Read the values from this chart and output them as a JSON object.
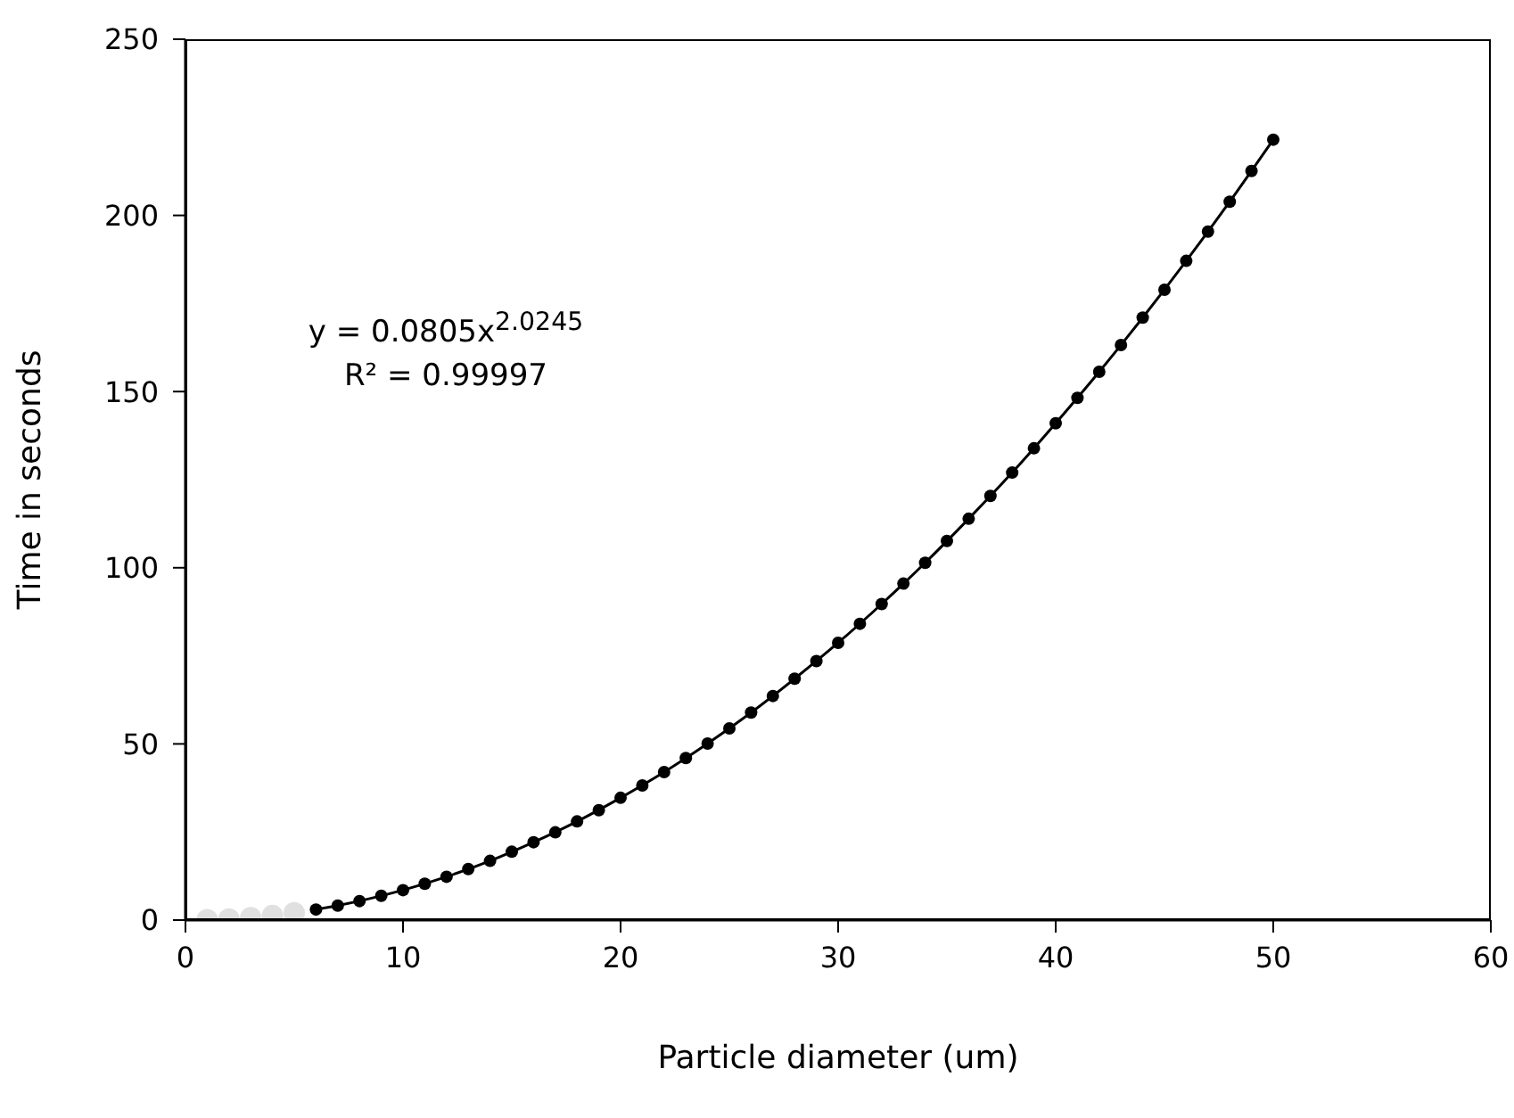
{
  "chart_data": {
    "type": "scatter",
    "xlabel": "Particle diameter (um)",
    "ylabel": "Time in seconds",
    "xlim": [
      0,
      60
    ],
    "xticks": [
      0,
      10,
      20,
      30,
      40,
      50,
      60
    ],
    "ylim": [
      0,
      250
    ],
    "yticks": [
      0,
      50,
      100,
      150,
      200,
      250
    ],
    "grid": false,
    "legend": false,
    "marker": "circle",
    "annotations": [
      "y = 0.0805x$^{2.0245}$",
      "R² = 0.99997"
    ],
    "series": [
      {
        "color": "#e0e0e0",
        "x": [
          1,
          2,
          3,
          4,
          5
        ],
        "values": [
          0.1,
          0.3,
          0.7,
          1.3,
          2.1
        ]
      },
      {
        "color": "#000000",
        "x": [
          6,
          7,
          8,
          9,
          10,
          11,
          12,
          13,
          14,
          15,
          16,
          17,
          18,
          19,
          20,
          21,
          22,
          23,
          24,
          25,
          26,
          27,
          28,
          29,
          30,
          31,
          32,
          33,
          34,
          35,
          36,
          37,
          38,
          39,
          40,
          41,
          42,
          43,
          44,
          45,
          46,
          47,
          48,
          49,
          50
        ],
        "values": [
          3.0,
          4.1,
          5.4,
          6.9,
          8.5,
          10.3,
          12.3,
          14.5,
          16.8,
          19.4,
          22.1,
          24.9,
          28.0,
          31.2,
          34.7,
          38.2,
          42.0,
          46.0,
          50.1,
          54.4,
          58.9,
          63.6,
          68.5,
          73.5,
          78.7,
          84.1,
          89.7,
          95.5,
          101.4,
          107.6,
          113.9,
          120.4,
          127.0,
          133.9,
          141.0,
          148.2,
          155.6,
          163.2,
          171.0,
          178.9,
          187.1,
          195.4,
          203.9,
          212.6,
          221.5
        ]
      },
      {
        "type": "line",
        "color": "#000000",
        "line_style": "solid",
        "marker": "none",
        "x": [
          6,
          8,
          10,
          12,
          14,
          16,
          18,
          20,
          22,
          24,
          26,
          28,
          30,
          32,
          34,
          36,
          38,
          40,
          42,
          44,
          46,
          48,
          50
        ],
        "values": [
          3.0,
          5.4,
          8.5,
          12.3,
          16.8,
          22.1,
          28.0,
          34.7,
          42.0,
          50.1,
          58.9,
          68.5,
          78.7,
          89.7,
          101.4,
          113.9,
          127.0,
          141.0,
          155.6,
          171.0,
          187.1,
          203.9,
          221.5
        ]
      }
    ]
  }
}
